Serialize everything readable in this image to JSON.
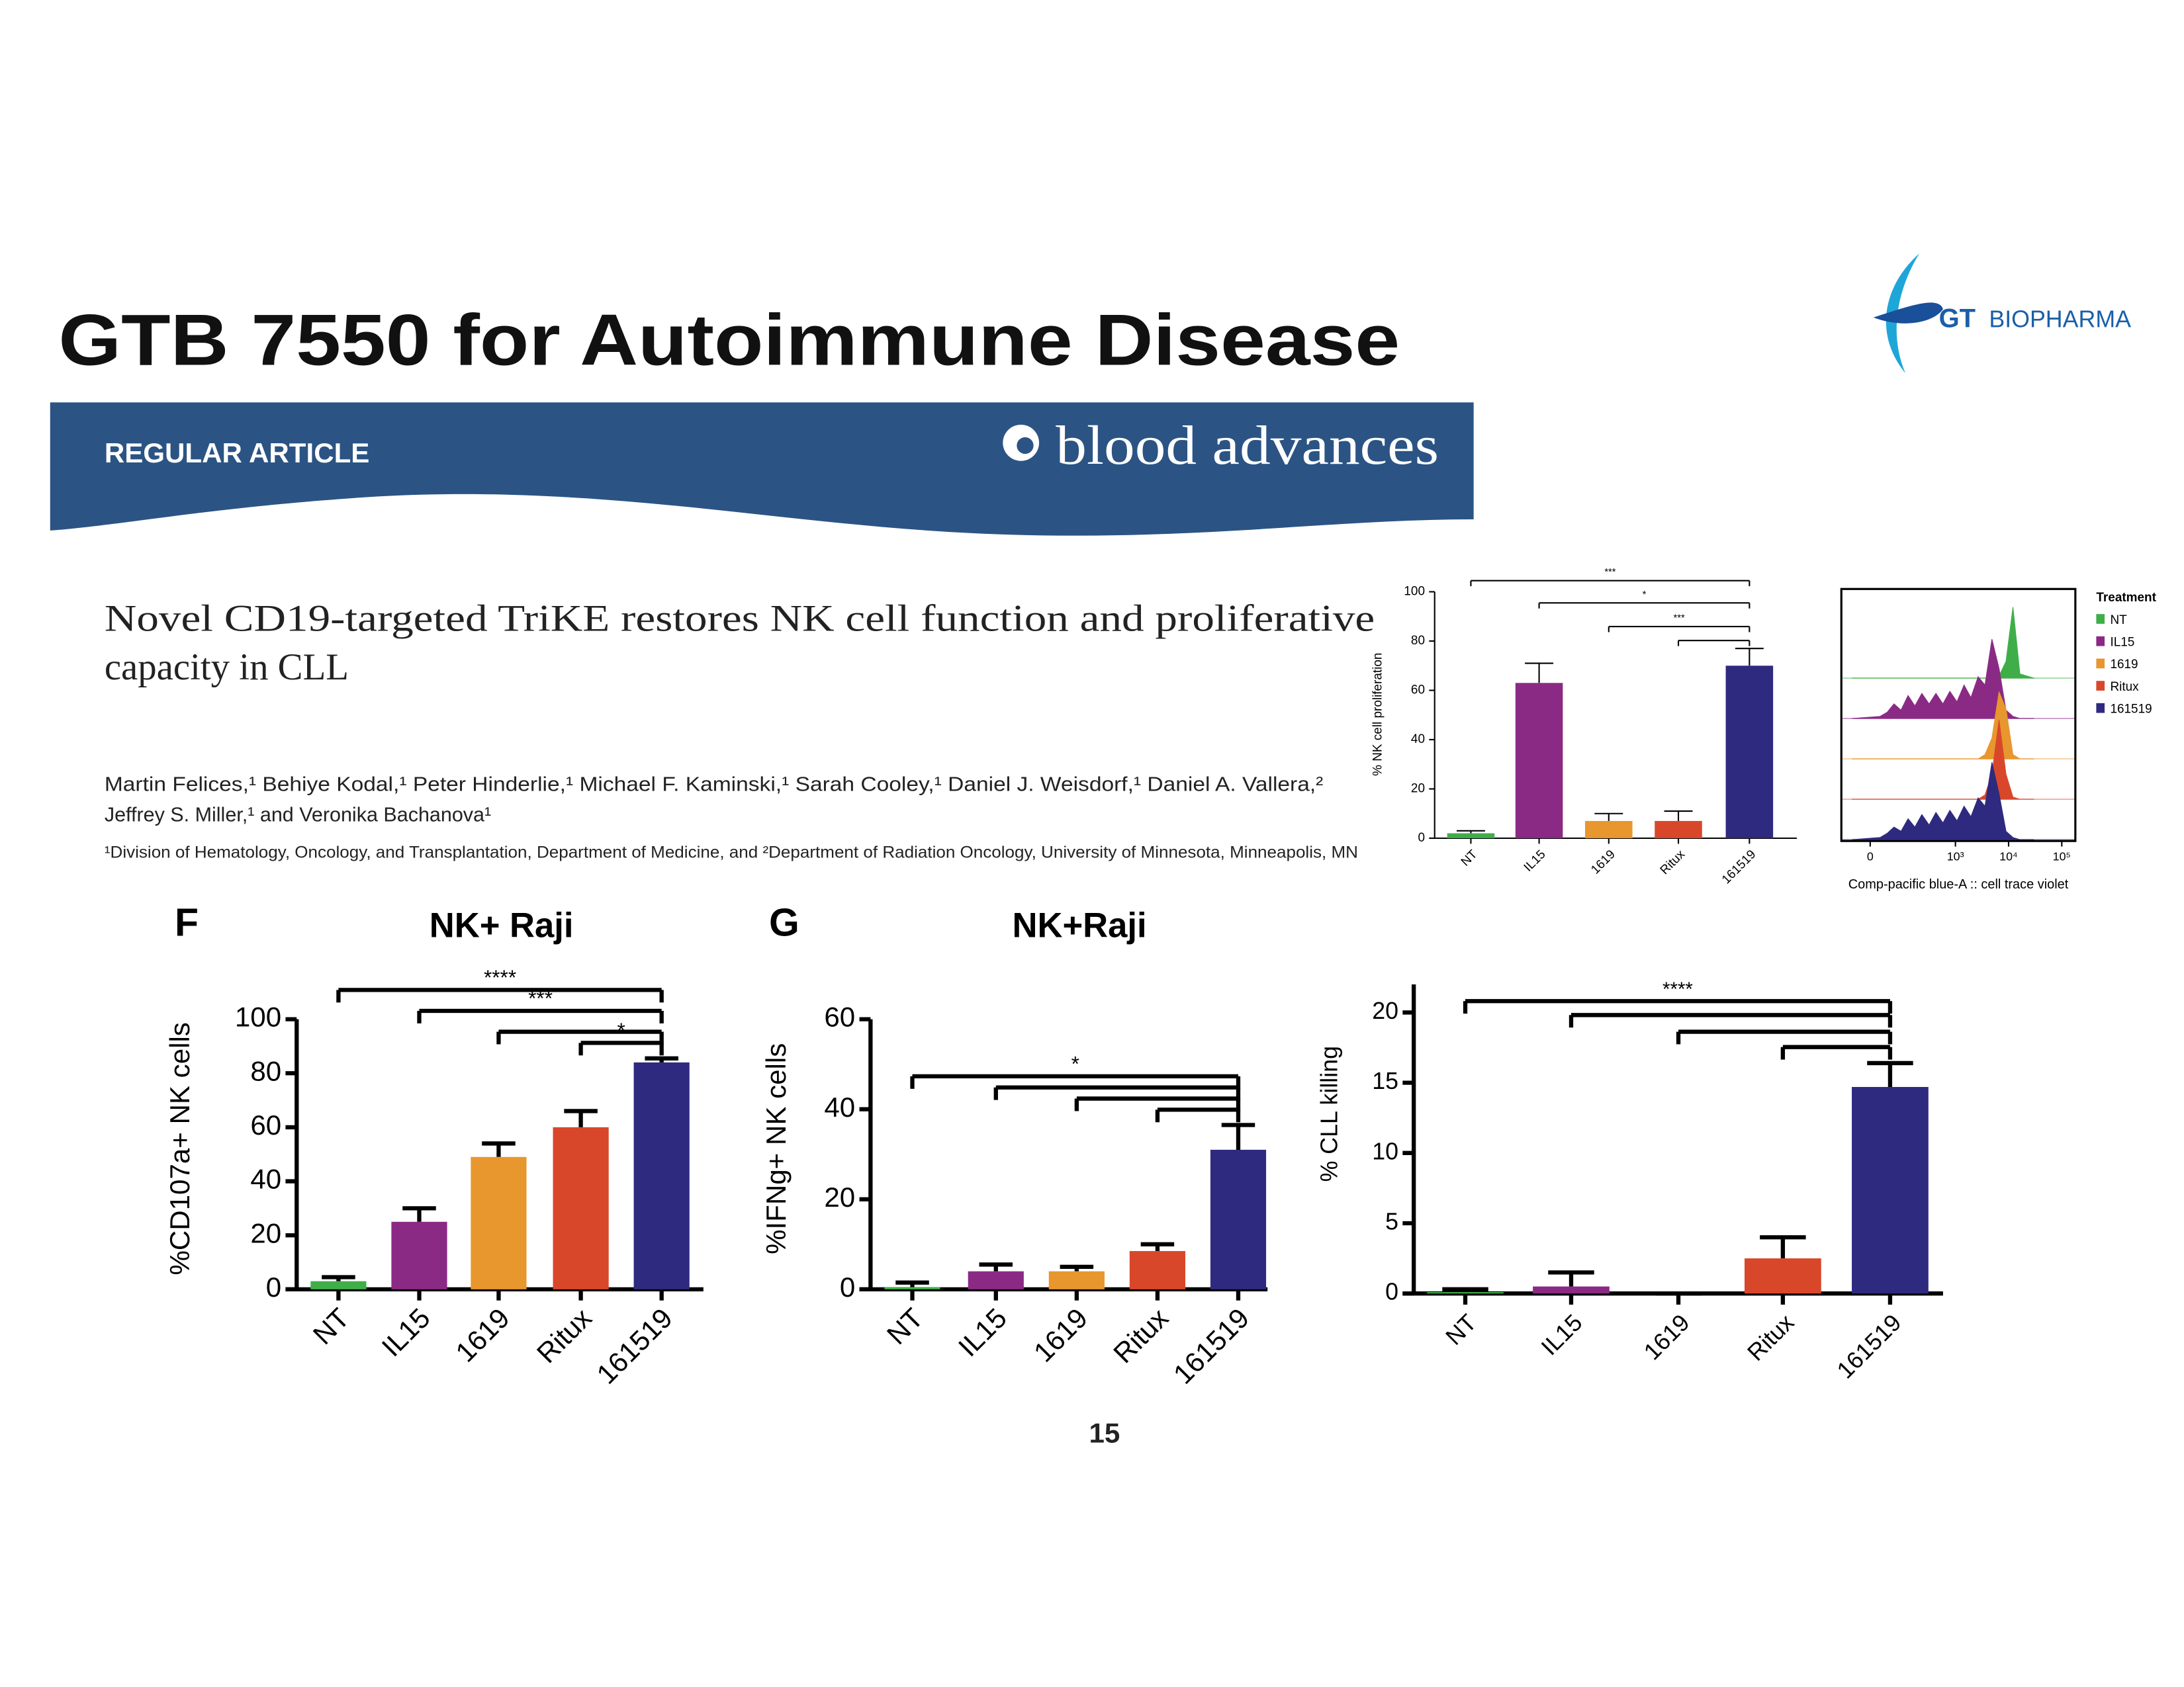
{
  "title": "GTB 7550 for Autoimmune Disease",
  "logo": {
    "gt": "GT",
    "name": "BIOPHARMA"
  },
  "article": {
    "label": "REGULAR ARTICLE",
    "journal": "blood advances",
    "title_lines": [
      "Novel CD19-targeted TriKE restores NK cell function and proliferative",
      "capacity in CLL"
    ],
    "author_lines": [
      "Martin Felices,¹ Behiye Kodal,¹ Peter Hinderlie,¹ Michael F. Kaminski,¹ Sarah Cooley,¹ Daniel J. Weisdorf,¹ Daniel A. Vallera,²",
      "Jeffrey S. Miller,¹ and Veronika Bachanova¹"
    ],
    "affiliation": "¹Division of Hematology, Oncology, and Transplantation, Department of Medicine, and ²Department of Radiation Oncology, University of Minnesota, Minneapolis, MN"
  },
  "page_number": "15",
  "chart_data": [
    {
      "type": "bar",
      "ylabel": "% NK cell proliferation",
      "categories": [
        "NT",
        "IL15",
        "1619",
        "Ritux",
        "161519"
      ],
      "values": [
        2,
        63,
        7,
        7,
        70
      ],
      "errors": [
        1,
        8,
        3,
        4,
        7
      ],
      "colors": [
        "#3fae49",
        "#8b2a85",
        "#e8962e",
        "#d9472b",
        "#2e2a7f"
      ],
      "ylim": [
        0,
        100
      ],
      "yticks": [
        0,
        20,
        40,
        60,
        80,
        100
      ],
      "brackets": [
        {
          "from": "NT",
          "to": "161519",
          "label": "***"
        },
        {
          "from": "IL15",
          "to": "161519",
          "label": "*"
        },
        {
          "from": "1619",
          "to": "161519",
          "label": "***"
        },
        {
          "from": "Ritux",
          "to": "161519"
        }
      ]
    },
    {
      "type": "ridgeline",
      "xlabel": "Comp-pacific blue-A :: cell trace violet",
      "legend_title": "Treatment",
      "xscale": "biexponential",
      "xlim": [
        -80,
        180000
      ],
      "xticks": [
        0,
        {
          "value": 1000,
          "label": "10³"
        },
        {
          "value": 10000,
          "label": "10⁴"
        },
        {
          "value": 100000,
          "label": "10⁵"
        }
      ],
      "x": [
        -44,
        22,
        40,
        61,
        88,
        124,
        170,
        232,
        318,
        430,
        582,
        787,
        1070,
        1450,
        1960,
        2670,
        3600,
        4860,
        6600,
        8950,
        12100,
        16300,
        30000
      ],
      "series": [
        {
          "name": "NT",
          "color": "#3fae49",
          "values": [
            0,
            0,
            0,
            0,
            0,
            0,
            0,
            0,
            0,
            0,
            0,
            0,
            0,
            0,
            0,
            0,
            0,
            0,
            0.05,
            0.4,
            1.7,
            0.1,
            0
          ]
        },
        {
          "name": "IL15",
          "color": "#8b2a85",
          "values": [
            0,
            0.05,
            0.15,
            0.35,
            0.2,
            0.55,
            0.3,
            0.6,
            0.35,
            0.6,
            0.35,
            0.65,
            0.4,
            0.8,
            0.5,
            1.0,
            0.8,
            1.9,
            1.2,
            0.2,
            0.05,
            0,
            0
          ]
        },
        {
          "name": "1619",
          "color": "#e8962e",
          "values": [
            0,
            0,
            0,
            0,
            0,
            0,
            0,
            0,
            0,
            0,
            0,
            0,
            0,
            0,
            0,
            0,
            0.1,
            0.5,
            1.6,
            1.2,
            0.1,
            0,
            0
          ]
        },
        {
          "name": "Ritux",
          "color": "#d9472b",
          "values": [
            0,
            0,
            0,
            0,
            0,
            0,
            0,
            0,
            0,
            0,
            0,
            0,
            0,
            0,
            0,
            0,
            0.1,
            0.6,
            1.9,
            0.6,
            0.05,
            0,
            0
          ]
        },
        {
          "name": "161519",
          "color": "#2e2a7f",
          "values": [
            0,
            0.05,
            0.15,
            0.3,
            0.2,
            0.5,
            0.3,
            0.6,
            0.35,
            0.65,
            0.4,
            0.7,
            0.45,
            0.8,
            0.55,
            1.0,
            0.8,
            1.85,
            1.1,
            0.2,
            0.05,
            0,
            0
          ]
        }
      ]
    },
    {
      "type": "bar",
      "panel": "F",
      "title": "NK+ Raji",
      "ylabel": "%CD107a+ NK cells",
      "categories": [
        "NT",
        "IL15",
        "1619",
        "Ritux",
        "161519"
      ],
      "values": [
        3,
        25,
        49,
        60,
        84
      ],
      "errors": [
        1.5,
        5,
        5,
        6,
        1.5
      ],
      "colors": [
        "#3fae49",
        "#8b2a85",
        "#e8962e",
        "#d9472b",
        "#2e2a7f"
      ],
      "ylim": [
        0,
        100
      ],
      "yticks": [
        0,
        20,
        40,
        60,
        80,
        100
      ],
      "brackets": [
        {
          "from": "NT",
          "to": "161519",
          "label": "****"
        },
        {
          "from": "IL15",
          "to": "161519",
          "label": "***"
        },
        {
          "from": "1619",
          "to": "161519"
        },
        {
          "from": "Ritux",
          "to": "161519",
          "label": "*"
        }
      ]
    },
    {
      "type": "bar",
      "panel": "G",
      "title": "NK+Raji",
      "ylabel": "%IFNg+ NK cells",
      "categories": [
        "NT",
        "IL15",
        "1619",
        "Ritux",
        "161519"
      ],
      "values": [
        0.5,
        4,
        4,
        8.5,
        31
      ],
      "errors": [
        1,
        1.5,
        1,
        1.5,
        5.5
      ],
      "colors": [
        "#3fae49",
        "#8b2a85",
        "#e8962e",
        "#d9472b",
        "#2e2a7f"
      ],
      "ylim": [
        0,
        60
      ],
      "yticks": [
        0,
        20,
        40,
        60
      ],
      "brackets": [
        {
          "from": "NT",
          "to": "161519",
          "label": "*"
        },
        {
          "from": "IL15",
          "to": "161519"
        },
        {
          "from": "1619",
          "to": "161519"
        },
        {
          "from": "Ritux",
          "to": "161519"
        }
      ]
    },
    {
      "type": "bar",
      "ylabel": "% CLL killing",
      "categories": [
        "NT",
        "IL15",
        "1619",
        "Ritux",
        "161519"
      ],
      "values": [
        0.1,
        0.5,
        0,
        2.5,
        14.7
      ],
      "errors": [
        0.2,
        1,
        0,
        1.5,
        1.7
      ],
      "colors": [
        "#3fae49",
        "#8b2a85",
        "#e8962e",
        "#d9472b",
        "#2e2a7f"
      ],
      "ylim": [
        0,
        22
      ],
      "yticks": [
        0,
        5,
        10,
        15,
        20
      ],
      "brackets": [
        {
          "from": "NT",
          "to": "161519",
          "label": "****"
        },
        {
          "from": "IL15",
          "to": "161519"
        },
        {
          "from": "1619",
          "to": "161519"
        },
        {
          "from": "Ritux",
          "to": "161519"
        }
      ]
    }
  ]
}
